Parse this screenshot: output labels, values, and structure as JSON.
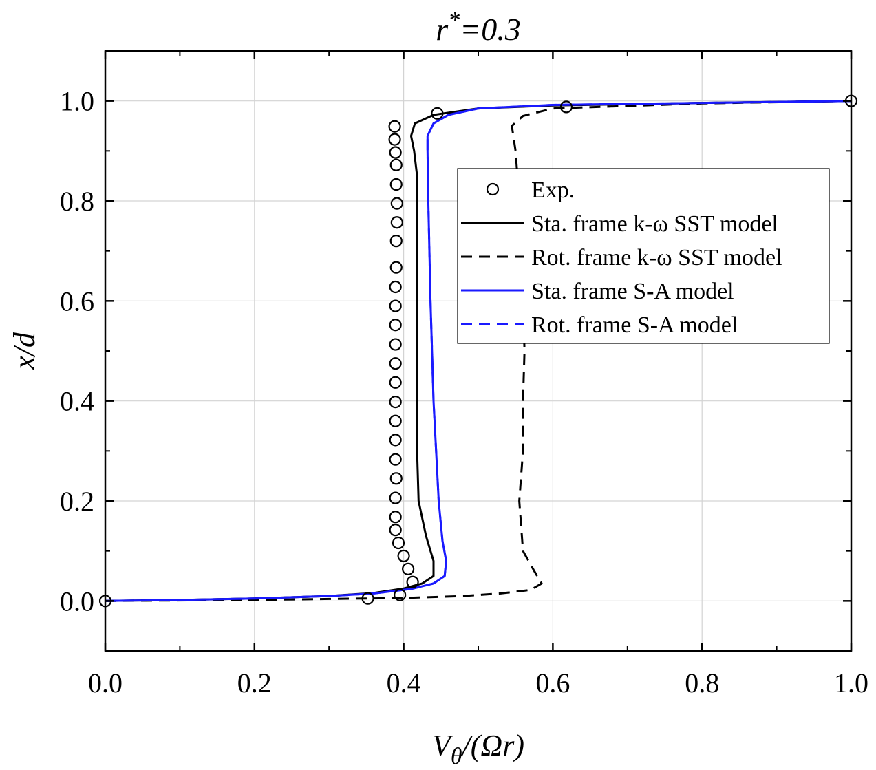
{
  "chart_data": {
    "type": "line",
    "title": "r*=0.3",
    "title_parts": {
      "base": "r",
      "sup": "*",
      "rest": "=0.3"
    },
    "xlabel": "Vθ/(Ωr)",
    "xlabel_parts": {
      "v": "V",
      "sub": "θ",
      "rest": "/(Ωr)"
    },
    "ylabel": "x/d",
    "xlim": [
      0,
      1.0
    ],
    "ylim": [
      -0.1,
      1.1
    ],
    "xticks": [
      "0.0",
      "0.2",
      "0.4",
      "0.6",
      "0.8",
      "1.0"
    ],
    "xtick_values": [
      0,
      0.2,
      0.4,
      0.6,
      0.8,
      1.0
    ],
    "yticks": [
      "0.0",
      "0.2",
      "0.4",
      "0.6",
      "0.8",
      "1.0"
    ],
    "ytick_values": [
      0,
      0.2,
      0.4,
      0.6,
      0.8,
      1.0
    ],
    "grid": true,
    "legend_position": "center-right",
    "series": [
      {
        "name": "Exp.",
        "style": "marker-circle-open",
        "color": "#000000",
        "points": [
          [
            0.0,
            0.0
          ],
          [
            0.352,
            0.005
          ],
          [
            0.395,
            0.012
          ],
          [
            0.412,
            0.038
          ],
          [
            0.406,
            0.064
          ],
          [
            0.4,
            0.09
          ],
          [
            0.393,
            0.116
          ],
          [
            0.389,
            0.142
          ],
          [
            0.389,
            0.168
          ],
          [
            0.389,
            0.206
          ],
          [
            0.39,
            0.245
          ],
          [
            0.389,
            0.283
          ],
          [
            0.389,
            0.322
          ],
          [
            0.389,
            0.36
          ],
          [
            0.389,
            0.398
          ],
          [
            0.389,
            0.437
          ],
          [
            0.389,
            0.475
          ],
          [
            0.389,
            0.513
          ],
          [
            0.389,
            0.552
          ],
          [
            0.389,
            0.59
          ],
          [
            0.389,
            0.628
          ],
          [
            0.39,
            0.667
          ],
          [
            0.39,
            0.72
          ],
          [
            0.391,
            0.757
          ],
          [
            0.391,
            0.795
          ],
          [
            0.39,
            0.833
          ],
          [
            0.39,
            0.872
          ],
          [
            0.389,
            0.897
          ],
          [
            0.388,
            0.923
          ],
          [
            0.388,
            0.949
          ],
          [
            0.445,
            0.975
          ],
          [
            0.618,
            0.988
          ],
          [
            1.0,
            1.0
          ]
        ]
      },
      {
        "name": "Sta. frame k-ω SST model",
        "style": "solid",
        "color": "#000000",
        "points": [
          [
            0.0,
            0.0
          ],
          [
            0.1,
            0.002
          ],
          [
            0.2,
            0.005
          ],
          [
            0.3,
            0.01
          ],
          [
            0.36,
            0.016
          ],
          [
            0.4,
            0.025
          ],
          [
            0.425,
            0.035
          ],
          [
            0.44,
            0.05
          ],
          [
            0.44,
            0.08
          ],
          [
            0.43,
            0.13
          ],
          [
            0.42,
            0.2
          ],
          [
            0.418,
            0.3
          ],
          [
            0.418,
            0.5
          ],
          [
            0.418,
            0.7
          ],
          [
            0.418,
            0.85
          ],
          [
            0.414,
            0.9
          ],
          [
            0.41,
            0.93
          ],
          [
            0.415,
            0.955
          ],
          [
            0.44,
            0.972
          ],
          [
            0.5,
            0.985
          ],
          [
            0.6,
            0.991
          ],
          [
            0.8,
            0.996
          ],
          [
            1.0,
            1.0
          ]
        ]
      },
      {
        "name": "Rot. frame k-ω SST model",
        "style": "dashed",
        "color": "#000000",
        "points": [
          [
            0.0,
            0.0
          ],
          [
            0.2,
            0.002
          ],
          [
            0.3,
            0.004
          ],
          [
            0.4,
            0.006
          ],
          [
            0.48,
            0.01
          ],
          [
            0.53,
            0.015
          ],
          [
            0.57,
            0.022
          ],
          [
            0.585,
            0.035
          ],
          [
            0.575,
            0.06
          ],
          [
            0.56,
            0.1
          ],
          [
            0.555,
            0.2
          ],
          [
            0.56,
            0.3
          ],
          [
            0.56,
            0.4
          ],
          [
            0.562,
            0.5
          ],
          [
            0.56,
            0.6
          ],
          [
            0.558,
            0.7
          ],
          [
            0.555,
            0.8
          ],
          [
            0.55,
            0.9
          ],
          [
            0.545,
            0.95
          ],
          [
            0.56,
            0.97
          ],
          [
            0.6,
            0.985
          ],
          [
            0.8,
            0.995
          ],
          [
            1.0,
            1.0
          ]
        ]
      },
      {
        "name": "Sta. frame S-A model",
        "style": "solid",
        "color": "#1a1aff",
        "points": [
          [
            0.0,
            0.0
          ],
          [
            0.1,
            0.002
          ],
          [
            0.2,
            0.005
          ],
          [
            0.3,
            0.01
          ],
          [
            0.36,
            0.015
          ],
          [
            0.41,
            0.024
          ],
          [
            0.44,
            0.035
          ],
          [
            0.455,
            0.05
          ],
          [
            0.457,
            0.08
          ],
          [
            0.452,
            0.12
          ],
          [
            0.447,
            0.2
          ],
          [
            0.44,
            0.4
          ],
          [
            0.436,
            0.6
          ],
          [
            0.433,
            0.8
          ],
          [
            0.432,
            0.9
          ],
          [
            0.432,
            0.93
          ],
          [
            0.44,
            0.955
          ],
          [
            0.46,
            0.972
          ],
          [
            0.5,
            0.985
          ],
          [
            0.6,
            0.992
          ],
          [
            0.8,
            0.996
          ],
          [
            1.0,
            1.0
          ]
        ]
      },
      {
        "name": "Rot. frame S-A model",
        "style": "dashed",
        "color": "#1a1aff",
        "points": [
          [
            0.0,
            0.0
          ],
          [
            0.1,
            0.002
          ],
          [
            0.2,
            0.005
          ],
          [
            0.3,
            0.01
          ],
          [
            0.36,
            0.015
          ],
          [
            0.41,
            0.024
          ],
          [
            0.44,
            0.035
          ],
          [
            0.455,
            0.05
          ],
          [
            0.457,
            0.08
          ],
          [
            0.452,
            0.12
          ],
          [
            0.447,
            0.2
          ],
          [
            0.44,
            0.4
          ],
          [
            0.436,
            0.6
          ],
          [
            0.433,
            0.8
          ],
          [
            0.432,
            0.9
          ],
          [
            0.432,
            0.93
          ],
          [
            0.44,
            0.955
          ],
          [
            0.46,
            0.972
          ],
          [
            0.5,
            0.985
          ],
          [
            0.6,
            0.992
          ],
          [
            0.8,
            0.996
          ],
          [
            1.0,
            1.0
          ]
        ]
      }
    ]
  }
}
